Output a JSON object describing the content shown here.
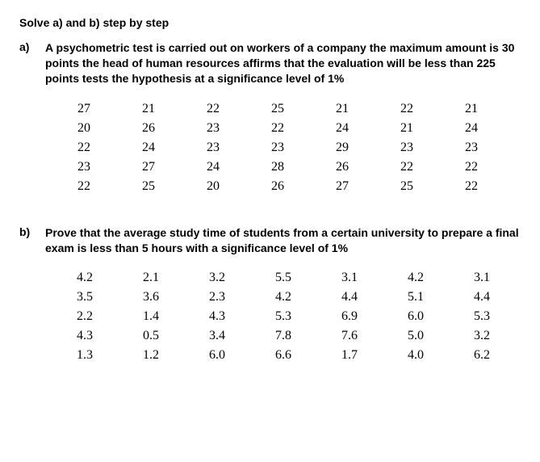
{
  "header": "Solve a) and b) step by step",
  "problem_a": {
    "label": "a)",
    "text": "A psychometric test is carried out on workers of a company the maximum amount is 30 points the head of human resources affirms that the evaluation will be less than 225 points tests the hypothesis at a significance level of 1%",
    "table": {
      "type": "table",
      "rows": [
        [
          "27",
          "21",
          "22",
          "25",
          "21",
          "22",
          "21"
        ],
        [
          "20",
          "26",
          "23",
          "22",
          "24",
          "21",
          "24"
        ],
        [
          "22",
          "24",
          "23",
          "23",
          "29",
          "23",
          "23"
        ],
        [
          "23",
          "27",
          "24",
          "28",
          "26",
          "22",
          "22"
        ],
        [
          "22",
          "25",
          "20",
          "26",
          "27",
          "25",
          "22"
        ]
      ],
      "colors": {
        "text": "#000000",
        "background": "#ffffff"
      },
      "font_size": 16,
      "font_family": "Times New Roman",
      "col_count": 7,
      "cell_align": "center"
    }
  },
  "problem_b": {
    "label": "b)",
    "text": "Prove that the average study time of students from a certain university to prepare a final exam is less than 5 hours with a significance level of 1%",
    "table": {
      "type": "table",
      "rows": [
        [
          "4.2",
          "2.1",
          "3.2",
          "5.5",
          "3.1",
          "4.2",
          "3.1"
        ],
        [
          "3.5",
          "3.6",
          "2.3",
          "4.2",
          "4.4",
          "5.1",
          "4.4"
        ],
        [
          "2.2",
          "1.4",
          "4.3",
          "5.3",
          "6.9",
          "6.0",
          "5.3"
        ],
        [
          "4.3",
          "0.5",
          "3.4",
          "7.8",
          "7.6",
          "5.0",
          "3.2"
        ],
        [
          "1.3",
          "1.2",
          "6.0",
          "6.6",
          "1.7",
          "4.0",
          "6.2"
        ]
      ],
      "colors": {
        "text": "#000000",
        "background": "#ffffff"
      },
      "font_size": 16,
      "font_family": "Times New Roman",
      "col_count": 7,
      "cell_align": "center"
    }
  }
}
